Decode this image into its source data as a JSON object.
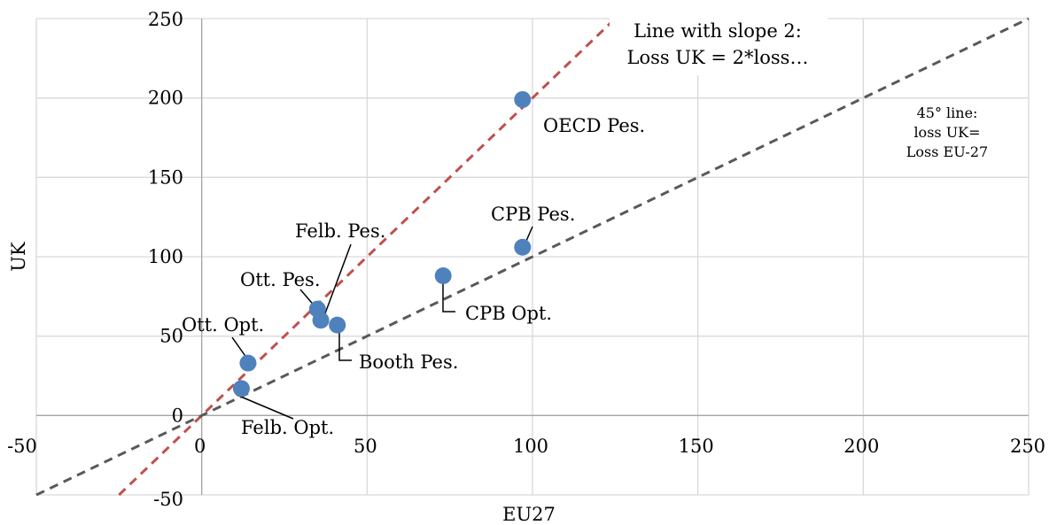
{
  "chart_data": {
    "type": "scatter",
    "xlabel": "EU27",
    "ylabel": "UK",
    "xlim": [
      -50,
      250
    ],
    "ylim": [
      -50,
      250
    ],
    "x_ticks": [
      "-50",
      "0",
      "50",
      "100",
      "150",
      "200",
      "250"
    ],
    "y_ticks": [
      "-50",
      "0",
      "50",
      "100",
      "150",
      "200",
      "250"
    ],
    "grid": true,
    "legend": "none",
    "point_color": "#4f81bd",
    "points": [
      {
        "label": "OECD Pes.",
        "x": 97,
        "y": 199
      },
      {
        "label": "CPB Pes.",
        "x": 97,
        "y": 106
      },
      {
        "label": "CPB Opt.",
        "x": 73,
        "y": 88
      },
      {
        "label": "Ott. Pes.",
        "x": 35,
        "y": 67
      },
      {
        "label": "Felb. Pes.",
        "x": 36,
        "y": 60
      },
      {
        "label": "Booth Pes.",
        "x": 41,
        "y": 57
      },
      {
        "label": "Ott. Opt.",
        "x": 14,
        "y": 33
      },
      {
        "label": "Felb. Opt.",
        "x": 12,
        "y": 17
      }
    ],
    "reference_lines": [
      {
        "slope": 2,
        "intercept": 0,
        "color": "#c0504d",
        "label_lines": [
          "Line with slope 2:",
          "Loss UK = 2*loss…"
        ]
      },
      {
        "slope": 1,
        "intercept": 0,
        "color": "#595959",
        "label_lines": [
          "45° line:",
          "loss UK=",
          "Loss EU-27"
        ]
      }
    ]
  }
}
